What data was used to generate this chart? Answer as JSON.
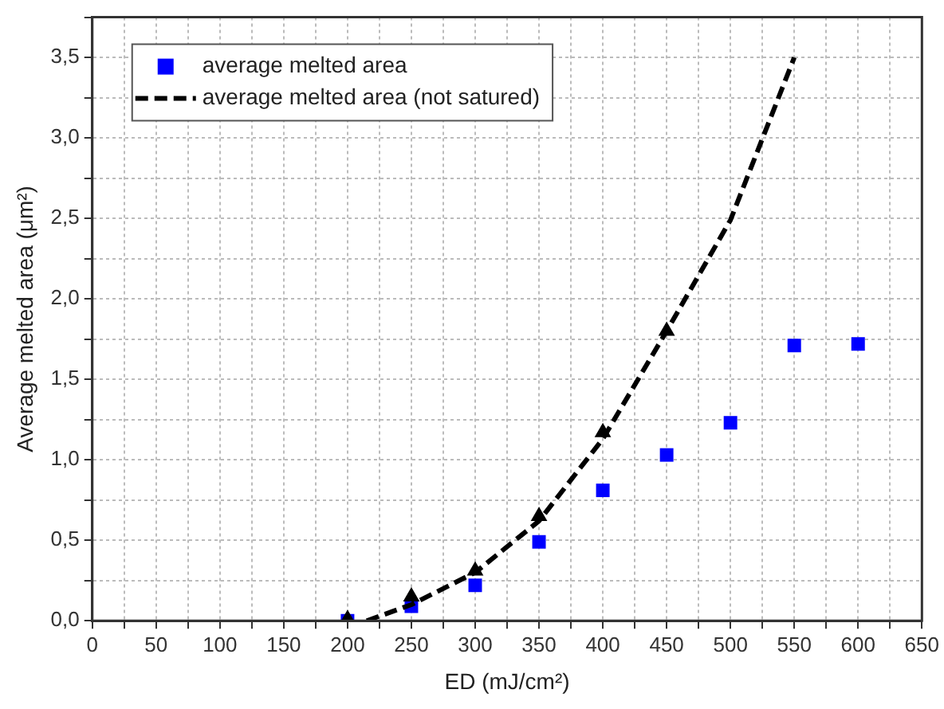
{
  "chart_data": {
    "type": "scatter",
    "xlabel": "ED (mJ/cm²)",
    "ylabel": "Average melted area (μm²)",
    "xlim": [
      0,
      650
    ],
    "ylim": [
      0,
      3.75
    ],
    "xticks": [
      0,
      {
        "value": 25,
        "label": null
      },
      50,
      {
        "value": 75,
        "label": null
      },
      100,
      {
        "value": 125,
        "label": null
      },
      150,
      {
        "value": 175,
        "label": null
      },
      200,
      {
        "value": 225,
        "label": null
      },
      250,
      {
        "value": 275,
        "label": null
      },
      300,
      {
        "value": 325,
        "label": null
      },
      350,
      {
        "value": 375,
        "label": null
      },
      400,
      {
        "value": 425,
        "label": null
      },
      450,
      {
        "value": 475,
        "label": null
      },
      500,
      {
        "value": 525,
        "label": null
      },
      550,
      {
        "value": 575,
        "label": null
      },
      600,
      {
        "value": 625,
        "label": null
      },
      650
    ],
    "yticks": [
      {
        "value": 0,
        "label": "0,0"
      },
      {
        "value": 0.25,
        "label": null
      },
      {
        "value": 0.5,
        "label": "0,5"
      },
      {
        "value": 0.75,
        "label": null
      },
      {
        "value": 1,
        "label": "1,0"
      },
      {
        "value": 1.25,
        "label": null
      },
      {
        "value": 1.5,
        "label": "1,5"
      },
      {
        "value": 1.75,
        "label": null
      },
      {
        "value": 2,
        "label": "2,0"
      },
      {
        "value": 2.25,
        "label": null
      },
      {
        "value": 2.5,
        "label": "2,5"
      },
      {
        "value": 2.75,
        "label": null
      },
      {
        "value": 3,
        "label": "3,0"
      },
      {
        "value": 3.25,
        "label": null
      },
      {
        "value": 3.5,
        "label": "3,5"
      },
      {
        "value": 3.75,
        "label": null
      }
    ],
    "grid": true,
    "legend": "top left",
    "series": [
      {
        "name": "average melted area",
        "type": "scatter",
        "marker": "square",
        "color": "#0000ff",
        "x": [
          200,
          250,
          300,
          350,
          400,
          450,
          500,
          550,
          600
        ],
        "values": [
          0.0,
          0.09,
          0.22,
          0.49,
          0.81,
          1.03,
          1.23,
          1.71,
          1.72
        ]
      },
      {
        "name": "average melted area (not satured)",
        "type": "line",
        "line_style": "dashed",
        "marker": "none",
        "color": "#000000",
        "x": [
          215,
          250,
          300,
          350,
          400,
          450,
          500,
          550
        ],
        "values": [
          0.0,
          0.1,
          0.3,
          0.62,
          1.13,
          1.8,
          2.49,
          3.5
        ]
      },
      {
        "type": "scatter",
        "marker": "triangle",
        "color": "#000000",
        "x": [
          200,
          250,
          300,
          350,
          400,
          450
        ],
        "values": [
          0.01,
          0.15,
          0.31,
          0.65,
          1.17,
          1.8
        ]
      }
    ]
  }
}
